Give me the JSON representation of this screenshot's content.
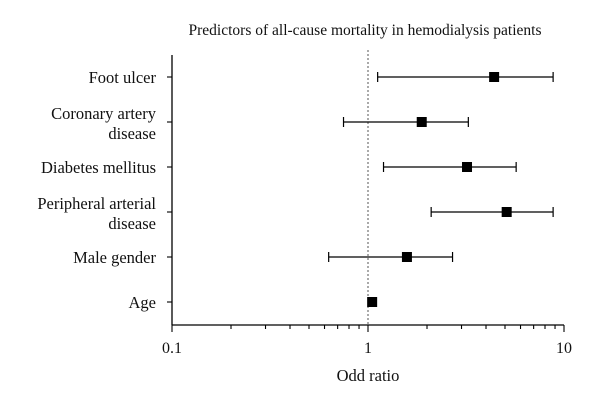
{
  "chart_data": {
    "type": "forest",
    "title": "Predictors of all-cause mortality in hemodialysis patients",
    "xlabel": "Odd ratio",
    "x_scale": "log",
    "xlim": [
      0.1,
      10
    ],
    "x_ticks": [
      {
        "value": 0.1,
        "label": "0.1"
      },
      {
        "value": 1,
        "label": "1"
      },
      {
        "value": 10,
        "label": "10"
      }
    ],
    "reference_value": 1,
    "categories": [
      {
        "label_lines": [
          "Foot ulcer"
        ],
        "estimate": 4.4,
        "ci_low": 1.12,
        "ci_high": 8.8
      },
      {
        "label_lines": [
          "Coronary artery",
          "disease"
        ],
        "estimate": 1.88,
        "ci_low": 0.75,
        "ci_high": 3.25
      },
      {
        "label_lines": [
          "Diabetes mellitus"
        ],
        "estimate": 3.2,
        "ci_low": 1.2,
        "ci_high": 5.7
      },
      {
        "label_lines": [
          "Peripheral arterial",
          "disease"
        ],
        "estimate": 5.1,
        "ci_low": 2.1,
        "ci_high": 8.8
      },
      {
        "label_lines": [
          "Male gender"
        ],
        "estimate": 1.58,
        "ci_low": 0.63,
        "ci_high": 2.7
      },
      {
        "label_lines": [
          "Age"
        ],
        "estimate": 1.05,
        "ci_low": 1.02,
        "ci_high": 1.08
      }
    ]
  }
}
